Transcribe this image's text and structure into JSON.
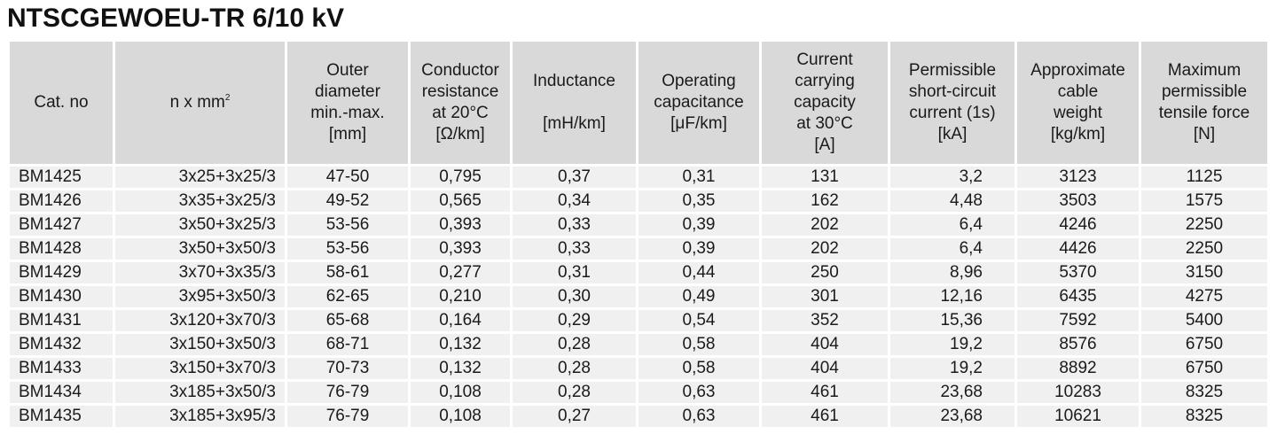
{
  "title": "NTSCGEWOEU-TR 6/10 kV",
  "table": {
    "headers": [
      {
        "lines": [
          "Cat. no"
        ]
      },
      {
        "lines": [
          "n x mm"
        ],
        "sup": "2"
      },
      {
        "lines": [
          "Outer",
          "diameter",
          "min.-max.",
          "[mm]"
        ]
      },
      {
        "lines": [
          "Conductor",
          "resistance",
          "at 20°C",
          "[Ω/km]"
        ]
      },
      {
        "lines": [
          "Inductance",
          "",
          "[mH/km]"
        ]
      },
      {
        "lines": [
          "Operating",
          "capacitance",
          "[μF/km]"
        ]
      },
      {
        "lines": [
          "Current",
          "carrying",
          "capacity",
          "at 30°C",
          "[A]"
        ]
      },
      {
        "lines": [
          "Permissible",
          "short-circuit",
          "current (1s)",
          "[kA]"
        ]
      },
      {
        "lines": [
          "Approximate",
          "cable",
          "weight",
          "[kg/km]"
        ]
      },
      {
        "lines": [
          "Maximum",
          "permissible",
          "tensile force",
          "[N]"
        ]
      }
    ],
    "rows": [
      [
        "BM1425",
        "3x25+3x25/3",
        "47-50",
        "0,795",
        "0,37",
        "0,31",
        "131",
        "3,2",
        "3123",
        "1125"
      ],
      [
        "BM1426",
        "3x35+3x25/3",
        "49-52",
        "0,565",
        "0,34",
        "0,35",
        "162",
        "4,48",
        "3503",
        "1575"
      ],
      [
        "BM1427",
        "3x50+3x25/3",
        "53-56",
        "0,393",
        "0,33",
        "0,39",
        "202",
        "6,4",
        "4246",
        "2250"
      ],
      [
        "BM1428",
        "3x50+3x50/3",
        "53-56",
        "0,393",
        "0,33",
        "0,39",
        "202",
        "6,4",
        "4426",
        "2250"
      ],
      [
        "BM1429",
        "3x70+3x35/3",
        "58-61",
        "0,277",
        "0,31",
        "0,44",
        "250",
        "8,96",
        "5370",
        "3150"
      ],
      [
        "BM1430",
        "3x95+3x50/3",
        "62-65",
        "0,210",
        "0,30",
        "0,49",
        "301",
        "12,16",
        "6435",
        "4275"
      ],
      [
        "BM1431",
        "3x120+3x70/3",
        "65-68",
        "0,164",
        "0,29",
        "0,54",
        "352",
        "15,36",
        "7592",
        "5400"
      ],
      [
        "BM1432",
        "3x150+3x50/3",
        "68-71",
        "0,132",
        "0,28",
        "0,58",
        "404",
        "19,2",
        "8576",
        "6750"
      ],
      [
        "BM1433",
        "3x150+3x70/3",
        "70-73",
        "0,132",
        "0,28",
        "0,58",
        "404",
        "19,2",
        "8892",
        "6750"
      ],
      [
        "BM1434",
        "3x185+3x50/3",
        "76-79",
        "0,108",
        "0,28",
        "0,63",
        "461",
        "23,68",
        "10283",
        "8325"
      ],
      [
        "BM1435",
        "3x185+3x95/3",
        "76-79",
        "0,108",
        "0,27",
        "0,63",
        "461",
        "23,68",
        "10621",
        "8325"
      ]
    ]
  },
  "colors": {
    "header_bg": "#d9d9d9",
    "row_bg": "#f0f0f0",
    "text": "#1a1a1a"
  }
}
